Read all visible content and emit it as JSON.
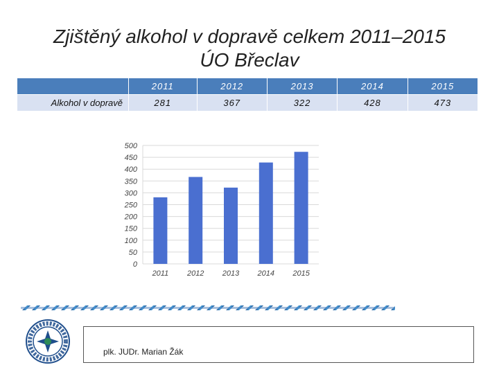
{
  "slide": {
    "title_line1": "Zjištěný alkohol v dopravě celkem 2011–2015",
    "title_line2": "ÚO Břeclav",
    "footer_author": "plk. JUDr. Marian Žák"
  },
  "table": {
    "header": [
      "2011",
      "2012",
      "2013",
      "2014",
      "2015"
    ],
    "row_label": "Alkohol v dopravě",
    "values": [
      "281",
      "367",
      "322",
      "428",
      "473"
    ]
  },
  "colors": {
    "bar": "#4a6fd0",
    "table_header": "#4a7ebb",
    "table_row": "#d9e1f2",
    "grid": "#d9d9d9",
    "logo": "#1f4e8c"
  },
  "chart_data": {
    "type": "bar",
    "categories": [
      "2011",
      "2012",
      "2013",
      "2014",
      "2015"
    ],
    "values": [
      281,
      367,
      322,
      428,
      473
    ],
    "yticks": [
      "0",
      "50",
      "100",
      "150",
      "200",
      "250",
      "300",
      "350",
      "400",
      "450",
      "500"
    ],
    "ylim": [
      0,
      500
    ],
    "grid": true,
    "legend": "none"
  }
}
